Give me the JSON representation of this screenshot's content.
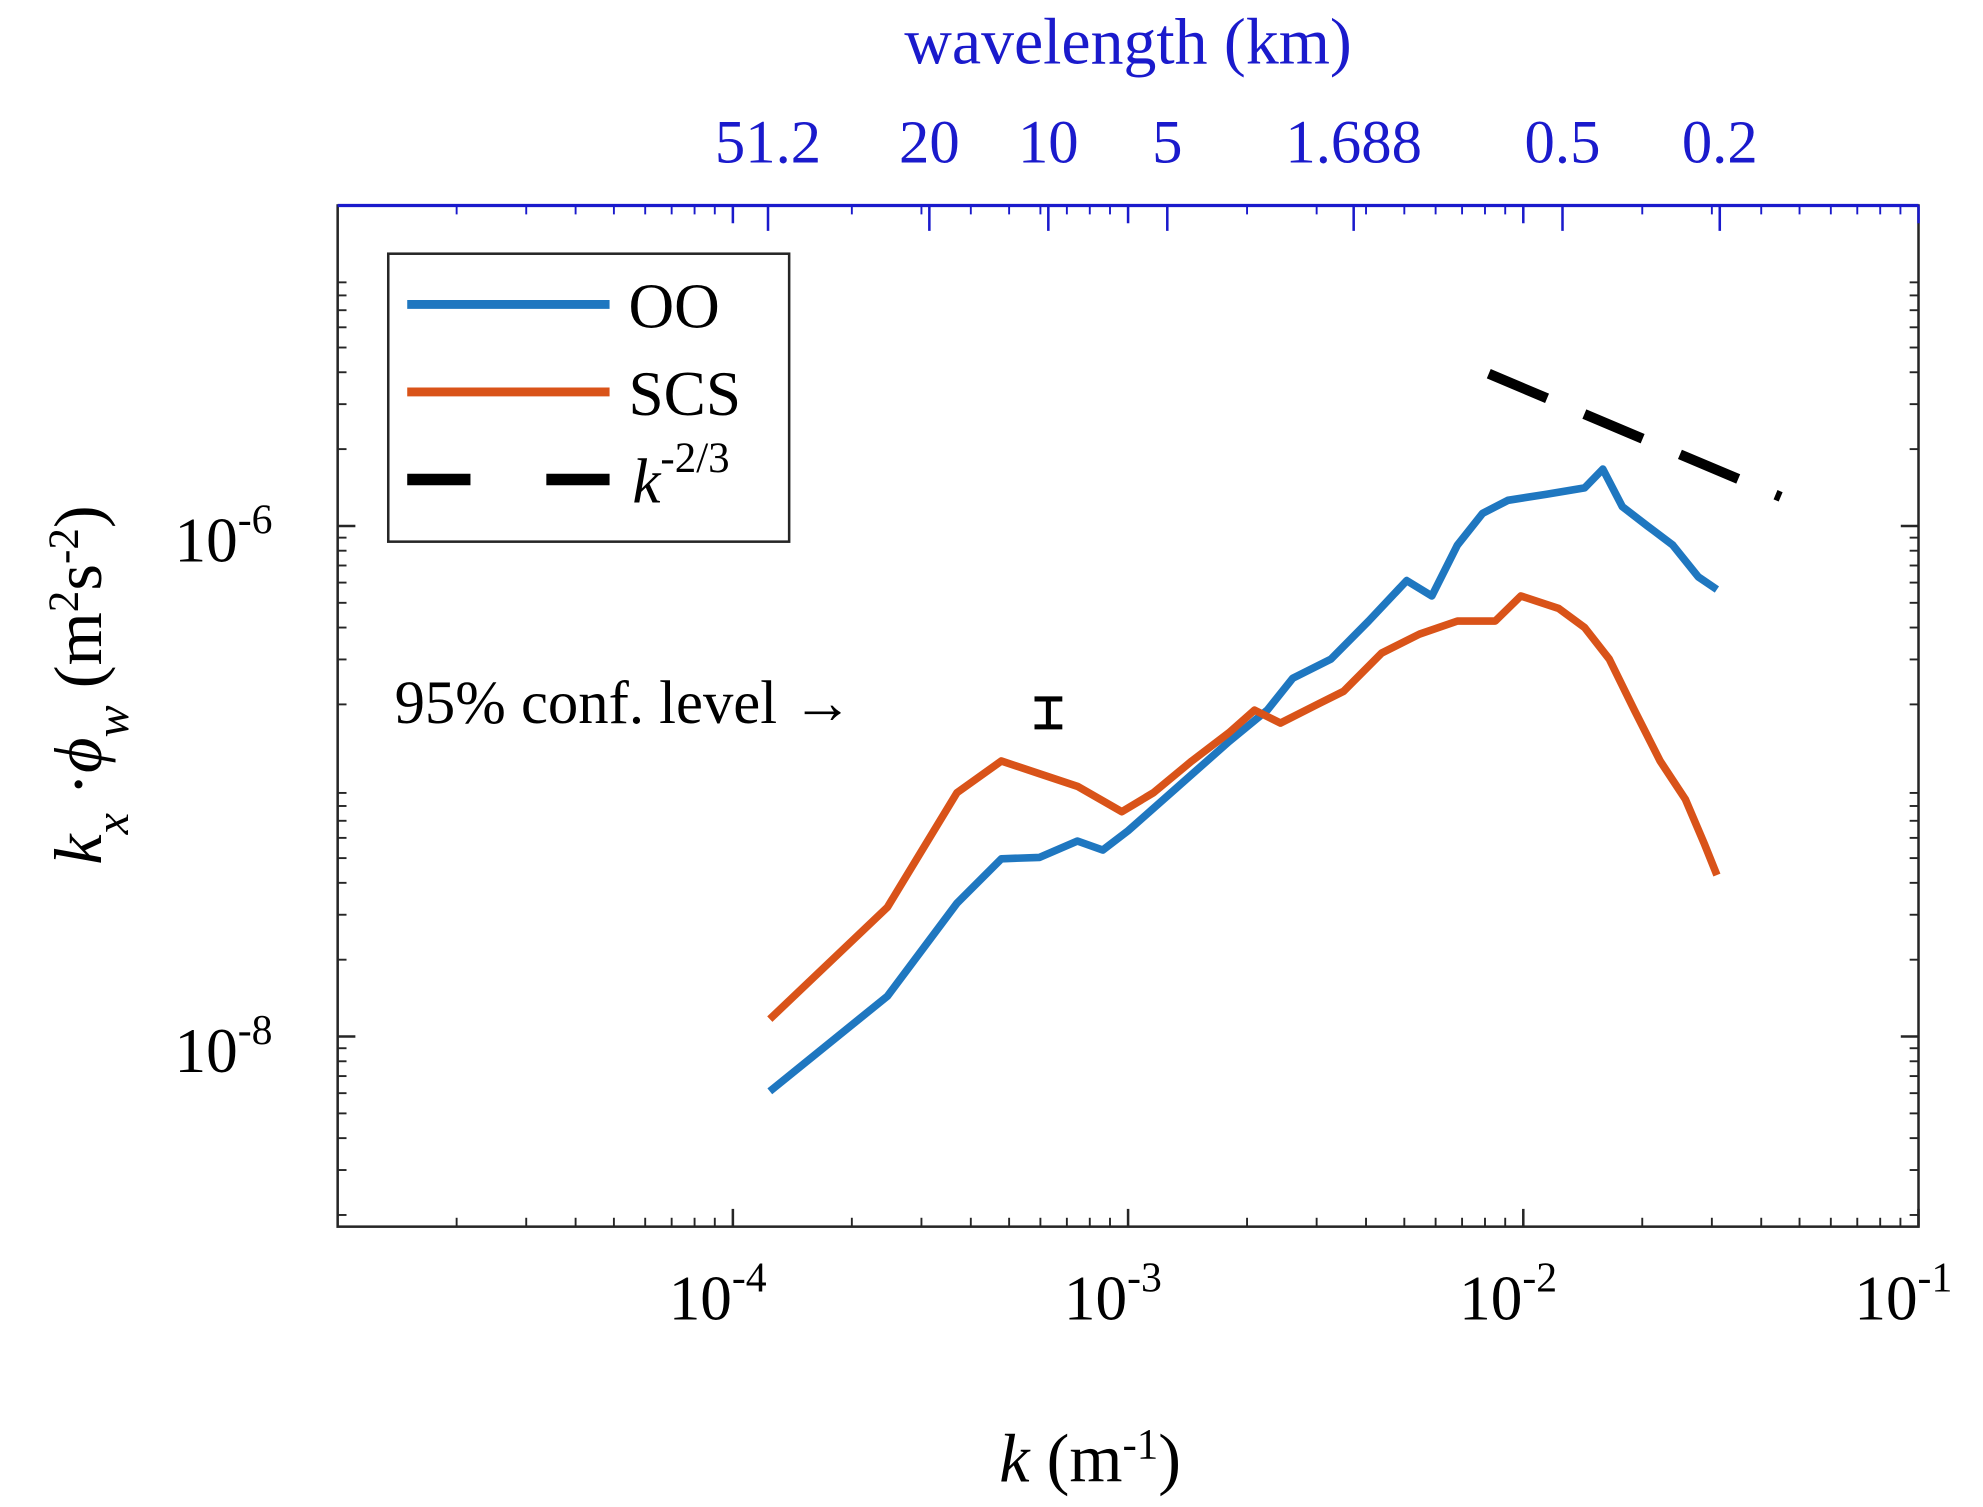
{
  "chart_data": {
    "type": "line",
    "x2label": "wavelength (km)",
    "x2ticks": [
      {
        "value": 51.2,
        "label": "51.2"
      },
      20,
      10,
      5,
      {
        "value": 1.688,
        "label": "1.688"
      },
      {
        "value": 0.5,
        "label": "0.5"
      },
      {
        "value": 0.2,
        "label": "0.2"
      }
    ],
    "xlabel": [
      [
        "k",
        "i"
      ],
      [
        "  (m",
        "n"
      ],
      [
        "-1",
        "sup"
      ],
      [
        ")",
        "n"
      ]
    ],
    "ylabel": [
      [
        "k",
        "i"
      ],
      [
        "x",
        "sub-i"
      ],
      [
        " ·",
        "n"
      ],
      [
        "ϕ",
        "i"
      ],
      [
        "w",
        "sub-i"
      ],
      [
        "  (m",
        "n"
      ],
      [
        "2",
        "sup"
      ],
      [
        "s",
        "n"
      ],
      [
        "-2",
        "sup"
      ],
      [
        ")",
        "n"
      ]
    ],
    "xscale": "log",
    "yscale": "log",
    "xlim": [
      1e-05,
      0.1
    ],
    "ylim": [
      1.8e-09,
      1.8e-05
    ],
    "xticks": [
      {
        "value": 0.0001,
        "label": "10",
        "exp": "-4"
      },
      {
        "value": 0.001,
        "label": "10",
        "exp": "-3"
      },
      {
        "value": 0.01,
        "label": "10",
        "exp": "-2"
      },
      {
        "value": 0.1,
        "label": "10",
        "exp": "-1"
      }
    ],
    "yticks": [
      {
        "value": 1e-08,
        "label": "10",
        "exp": "-8"
      },
      {
        "value": 1e-06,
        "label": "10",
        "exp": "-6"
      }
    ],
    "annotation": "95% conf. level →",
    "legend": "upper left",
    "series": [
      {
        "name": "OO",
        "color": "#1f77c0",
        "x": [
          0.000124,
          0.000246,
          0.000369,
          0.000478,
          0.000597,
          0.000745,
          0.000863,
          0.001,
          0.00134,
          0.0018,
          0.00225,
          0.00261,
          0.00326,
          0.00406,
          0.00507,
          0.00587,
          0.00681,
          0.00789,
          0.00915,
          0.0114,
          0.0143,
          0.0159,
          0.0178,
          0.0206,
          0.0239,
          0.0277,
          0.0309
        ],
        "values": [
          6.1e-09,
          1.44e-08,
          3.33e-08,
          4.97e-08,
          5.03e-08,
          5.83e-08,
          5.38e-08,
          6.4e-08,
          9.55e-08,
          1.43e-07,
          1.9e-07,
          2.53e-07,
          3.01e-07,
          4.24e-07,
          6.11e-07,
          5.32e-07,
          8.42e-07,
          1.12e-06,
          1.26e-06,
          1.33e-06,
          1.41e-06,
          1.67e-06,
          1.19e-06,
          1e-06,
          8.42e-07,
          6.32e-07,
          5.64e-07
        ]
      },
      {
        "name": "SCS",
        "color": "#d95319",
        "x": [
          0.000124,
          0.000246,
          0.000369,
          0.000478,
          0.000597,
          0.000745,
          0.000964,
          0.00116,
          0.00145,
          0.0018,
          0.00209,
          0.00243,
          0.00303,
          0.00351,
          0.00438,
          0.00546,
          0.00681,
          0.00849,
          0.00986,
          0.0123,
          0.0143,
          0.0165,
          0.0191,
          0.0222,
          0.0257,
          0.0287,
          0.0309
        ],
        "values": [
          1.17e-08,
          3.21e-08,
          9.02e-08,
          1.2e-07,
          1.07e-07,
          9.55e-08,
          7.6e-08,
          9.02e-08,
          1.2e-07,
          1.55e-07,
          1.9e-07,
          1.69e-07,
          2.01e-07,
          2.25e-07,
          3.18e-07,
          3.77e-07,
          4.24e-07,
          4.24e-07,
          5.32e-07,
          4.75e-07,
          4e-07,
          3.01e-07,
          1.9e-07,
          1.2e-07,
          8.51e-08,
          5.7e-08,
          4.29e-08
        ]
      },
      {
        "name": "k",
        "name_sup": "-2/3",
        "color": "#000000",
        "dash": true,
        "x": [
          0.00818,
          0.0448
        ],
        "values": [
          3.95e-06,
          1.3e-06
        ]
      }
    ]
  }
}
